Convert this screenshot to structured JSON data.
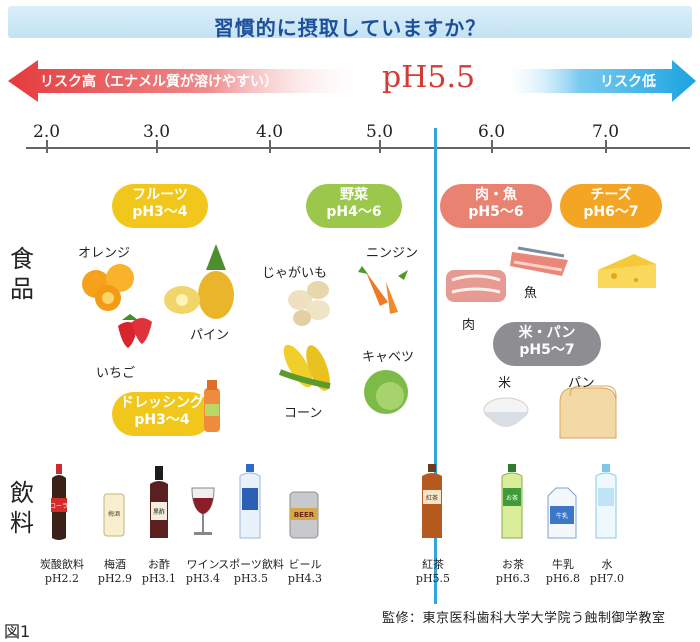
{
  "title": "習慣的に摂取していますか？",
  "scale": {
    "left_label": "リスク高（エナメル質が溶けやすい）",
    "right_label": "リスク低",
    "threshold": "pH5.5",
    "ticks": [
      "2.0",
      "3.0",
      "4.0",
      "5.0",
      "6.0",
      "7.0"
    ]
  },
  "sections": {
    "food": "食品",
    "drinks": "飲料"
  },
  "groups": {
    "fruits": {
      "name": "フルーツ",
      "ph": "pH3～4"
    },
    "vegetables": {
      "name": "野菜",
      "ph": "pH4～6"
    },
    "meat_fish": {
      "name": "肉・魚",
      "ph": "pH5～6"
    },
    "cheese": {
      "name": "チーズ",
      "ph": "pH6～7"
    },
    "rice_bread": {
      "name": "米・パン",
      "ph": "pH5～7"
    },
    "dressing": {
      "name": "ドレッシング",
      "ph": "pH3～4"
    }
  },
  "foods": {
    "orange": "オレンジ",
    "pineapple": "パイン",
    "strawberry": "いちご",
    "potato": "じゃがいも",
    "carrot": "ニンジン",
    "corn": "コーン",
    "cabbage": "キャベツ",
    "meat": "肉",
    "fish": "魚",
    "rice": "米",
    "bread": "パン"
  },
  "drinks": [
    {
      "name": "炭酸飲料",
      "ph": "pH2.2",
      "label": "コーラ"
    },
    {
      "name": "梅酒",
      "ph": "pH2.9",
      "label": "梅酒"
    },
    {
      "name": "お酢",
      "ph": "pH3.1",
      "label": "黒酢"
    },
    {
      "name": "ワイン",
      "ph": "pH3.4",
      "label": ""
    },
    {
      "name": "スポーツ飲料",
      "ph": "pH3.5",
      "label": ""
    },
    {
      "name": "ビール",
      "ph": "pH4.3",
      "label": "BEER"
    },
    {
      "name": "紅茶",
      "ph": "pH5.5",
      "label": "紅茶"
    },
    {
      "name": "お茶",
      "ph": "pH6.3",
      "label": "お茶"
    },
    {
      "name": "牛乳",
      "ph": "pH6.8",
      "label": "牛乳"
    },
    {
      "name": "水",
      "ph": "pH7.0",
      "label": ""
    }
  ],
  "credit": "監修：東京医科歯科大学大学院う蝕制御学教室",
  "figure_label": "図1",
  "colors": {
    "risk_high": "#e53a3c",
    "risk_low": "#1aa3e0",
    "threshold_line": "#35a6dd",
    "fruits": "#f2c71b",
    "vegetables": "#9bc84a",
    "meat_fish": "#ea8272",
    "cheese": "#f5a524",
    "rice_bread": "#8d8d92",
    "dressing": "#f2c71b"
  }
}
